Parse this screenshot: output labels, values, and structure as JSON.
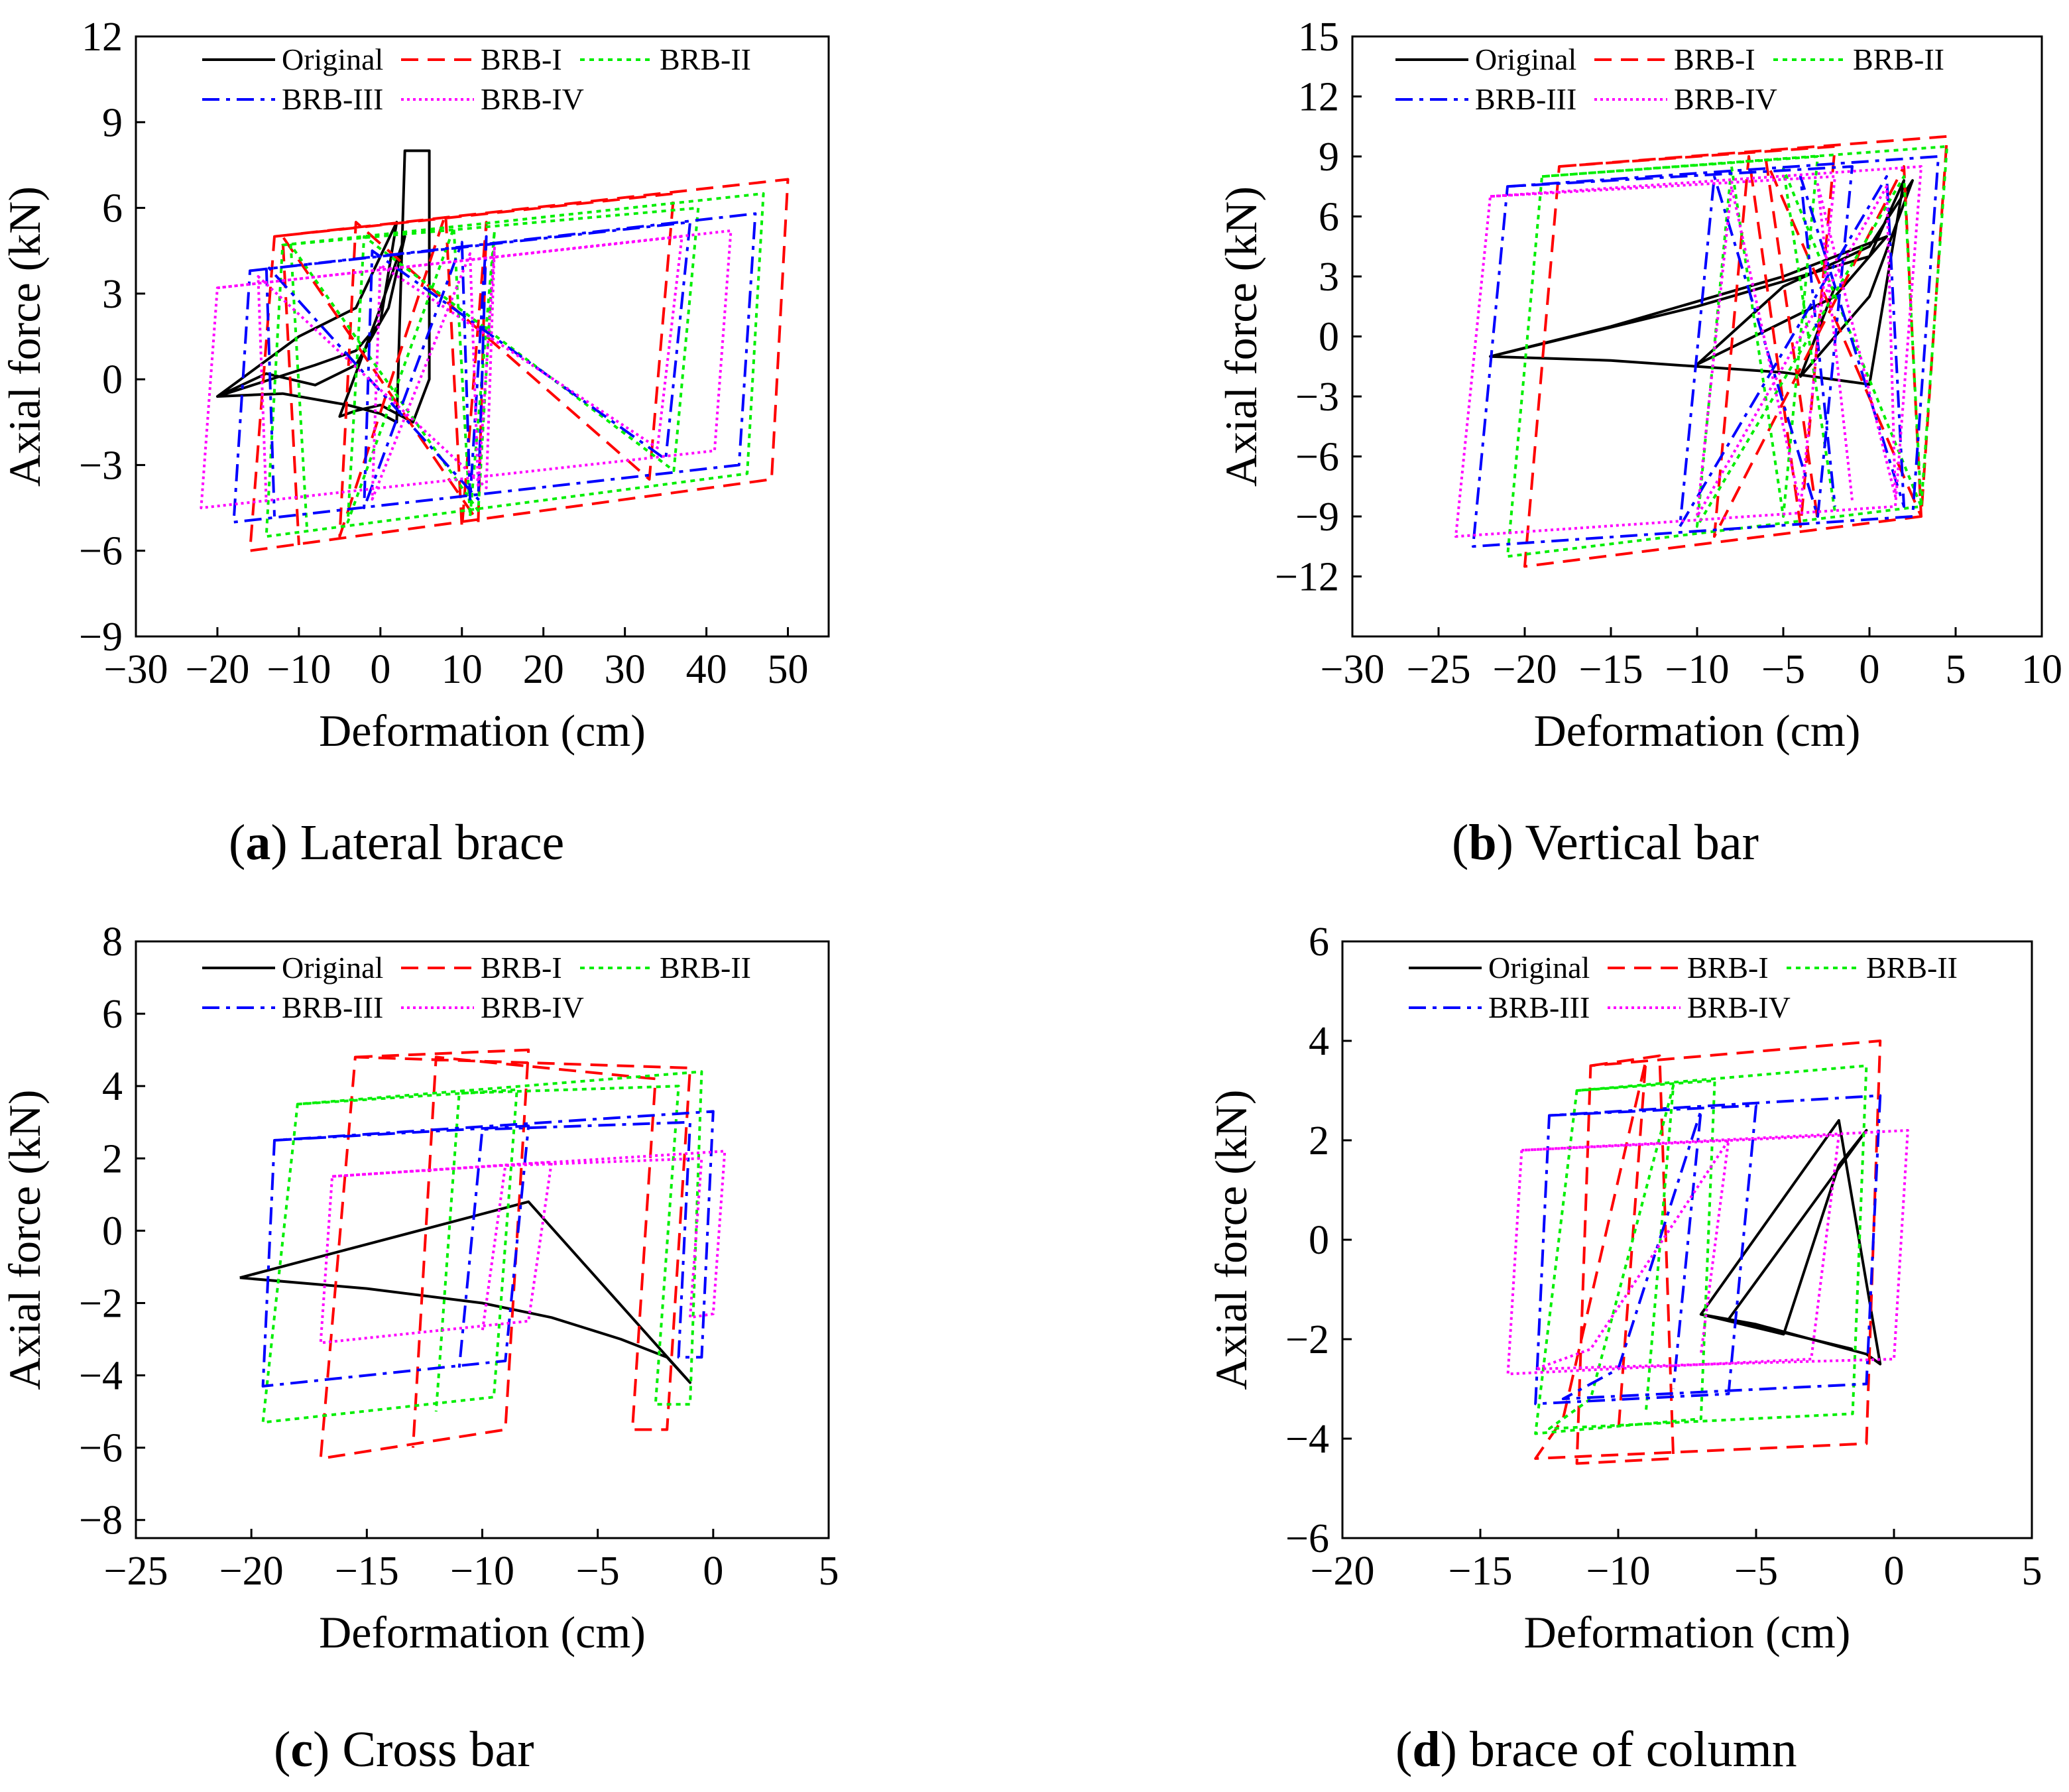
{
  "figure": {
    "colors": {
      "Original": "#000000",
      "BRB-I": "#ff0000",
      "BRB-II": "#00ee00",
      "BRB-III": "#0000ff",
      "BRB-IV": "#ff00ff"
    },
    "dash_styles": {
      "Original": "solid",
      "BRB-I": "dashed",
      "BRB-II": "dotted",
      "BRB-III": "dash-dot",
      "BRB-IV": "fine-dotted"
    }
  },
  "chart_data": [
    {
      "id": "a",
      "type": "line",
      "caption_letter": "a",
      "caption_text": " Lateral brace",
      "xlabel": "Deformation (cm)",
      "ylabel": "Axial force (kN)",
      "xlim": [
        -30,
        55
      ],
      "ylim": [
        -9,
        12
      ],
      "xticks": [
        -30,
        -20,
        -10,
        0,
        10,
        20,
        30,
        40,
        50
      ],
      "yticks": [
        -9,
        -6,
        -3,
        0,
        3,
        6,
        9,
        12
      ],
      "xtick_labels": [
        "−30",
        "−20",
        "−10",
        "0",
        "10",
        "20",
        "30",
        "40",
        "50"
      ],
      "ytick_labels": [
        "−9",
        "−6",
        "−3",
        "0",
        "3",
        "6",
        "9",
        "12"
      ],
      "legend": [
        "Original",
        "BRB-I",
        "BRB-II",
        "BRB-III",
        "BRB-IV"
      ],
      "series": [
        {
          "name": "Original",
          "x": [
            -20,
            -12,
            -4,
            0,
            2,
            3,
            6,
            6,
            4,
            2,
            0,
            -3,
            -5,
            0,
            3,
            1,
            -3,
            -8,
            -14,
            -20,
            -10,
            -3,
            2,
            0,
            -3,
            -8,
            -20
          ],
          "y": [
            -0.6,
            -0.5,
            -0.9,
            -1.2,
            -1.5,
            8,
            8,
            0,
            -1.5,
            -1.2,
            -0.9,
            -1.1,
            -1.3,
            2.5,
            5,
            2.5,
            0.5,
            -0.2,
            0.2,
            -0.6,
            1.5,
            2.5,
            5.5,
            2,
            1,
            0.5,
            -0.6
          ]
        },
        {
          "name": "BRB-I",
          "x": [
            -13,
            50,
            48,
            -16,
            -13,
            36,
            33,
            -3,
            -5,
            8,
            10,
            13,
            12,
            -12,
            -10
          ],
          "y": [
            5,
            7,
            -3.5,
            -6,
            5,
            6.5,
            -3.5,
            5.5,
            -5.5,
            5.8,
            -5.2,
            5.5,
            -5,
            5,
            -5.8
          ]
        },
        {
          "name": "BRB-II",
          "x": [
            -12,
            47,
            45,
            -14,
            -12,
            39,
            36,
            -2,
            -4,
            9,
            11,
            14,
            12,
            -11,
            -9
          ],
          "y": [
            4.7,
            6.5,
            -3.3,
            -5.5,
            4.7,
            6,
            -3.2,
            5,
            -5,
            5.3,
            -4.8,
            5.2,
            -4.6,
            4.7,
            -5.3
          ]
        },
        {
          "name": "BRB-III",
          "x": [
            -16,
            46,
            44,
            -18,
            -16,
            38,
            35,
            -1,
            -2,
            10,
            11,
            13,
            12,
            -14,
            -13
          ],
          "y": [
            3.8,
            5.8,
            -3,
            -5,
            3.8,
            5.5,
            -2.8,
            4.5,
            -4.5,
            4.8,
            -4.2,
            5,
            -4.2,
            4,
            -4.8
          ]
        },
        {
          "name": "BRB-IV",
          "x": [
            -20,
            43,
            41,
            -22,
            -20,
            37,
            34,
            0,
            -1,
            11,
            12,
            14,
            13,
            -15,
            -14
          ],
          "y": [
            3.2,
            5.2,
            -2.5,
            -4.5,
            3.2,
            5,
            -2.4,
            4,
            -4.2,
            4.4,
            -3.8,
            4.6,
            -3.8,
            3.6,
            -4.3
          ]
        }
      ]
    },
    {
      "id": "b",
      "type": "line",
      "caption_letter": "b",
      "caption_text": " Vertical bar",
      "xlabel": "Deformation (cm)",
      "ylabel": "Axial force (kN)",
      "xlim": [
        -30,
        10
      ],
      "ylim": [
        -15,
        15
      ],
      "xticks": [
        -30,
        -25,
        -20,
        -15,
        -10,
        -5,
        0,
        5,
        10
      ],
      "yticks": [
        -12,
        -9,
        -6,
        -3,
        0,
        3,
        6,
        9,
        12,
        15
      ],
      "xtick_labels": [
        "−30",
        "−25",
        "−20",
        "−15",
        "−10",
        "−5",
        "0",
        "5",
        "10"
      ],
      "ytick_labels": [
        "−12",
        "−9",
        "−6",
        "−3",
        "0",
        "3",
        "6",
        "9",
        "12",
        "15"
      ],
      "legend": [
        "Original",
        "BRB-I",
        "BRB-II",
        "BRB-III",
        "BRB-IV"
      ],
      "series": [
        {
          "name": "Original",
          "x": [
            -22,
            -15,
            -10,
            -5,
            0,
            2,
            0,
            -10,
            -22,
            -15,
            -5,
            1,
            -2,
            -10,
            -5,
            0,
            2.5,
            0,
            -4,
            -2
          ],
          "y": [
            -1,
            -1.2,
            -1.5,
            -1.8,
            -2.4,
            7.8,
            4,
            1.5,
            -1,
            0.5,
            3,
            5,
            2,
            -1.4,
            2.5,
            4.5,
            7.8,
            2,
            -2,
            2.5
          ]
        },
        {
          "name": "BRB-I",
          "x": [
            -18,
            4.5,
            3,
            -20,
            -18,
            -2,
            -4,
            -7,
            -9,
            2,
            3,
            -6,
            -3
          ],
          "y": [
            8.5,
            10,
            -9,
            -11.5,
            8.5,
            9.5,
            -9.5,
            9,
            -10,
            8.5,
            -9,
            8.8,
            -9.2
          ]
        },
        {
          "name": "BRB-II",
          "x": [
            -19,
            4.5,
            3,
            -21,
            -19,
            -3,
            -5,
            -8,
            -10,
            2,
            3,
            -5,
            -2
          ],
          "y": [
            8,
            9.5,
            -8.5,
            -11,
            8,
            9,
            -9,
            8.5,
            -9.5,
            8,
            -8.5,
            8.4,
            -8.8
          ]
        },
        {
          "name": "BRB-III",
          "x": [
            -21,
            4,
            2.5,
            -23,
            -21,
            -1,
            -3,
            -9,
            -11,
            1,
            2,
            -4,
            -2
          ],
          "y": [
            7.5,
            9,
            -9,
            -10.5,
            7.5,
            8.5,
            -9,
            8,
            -9.5,
            8,
            -8.5,
            8,
            -8.5
          ]
        },
        {
          "name": "BRB-IV",
          "x": [
            -22,
            3,
            1.5,
            -24,
            -22,
            -2,
            -4,
            -8,
            -10,
            1,
            1.5,
            -3,
            -1
          ],
          "y": [
            7,
            8.5,
            -8.5,
            -10,
            7,
            8,
            -8.5,
            7.5,
            -9,
            7.5,
            -8,
            7.6,
            -8.2
          ]
        }
      ]
    },
    {
      "id": "c",
      "type": "line",
      "caption_letter": "c",
      "caption_text": " Cross bar",
      "xlabel": "Deformation (cm)",
      "ylabel": "Axial force (kN)",
      "xlim": [
        -25,
        5
      ],
      "ylim": [
        -8.5,
        8
      ],
      "xticks": [
        -25,
        -20,
        -15,
        -10,
        -5,
        0,
        5
      ],
      "yticks": [
        -8,
        -6,
        -4,
        -2,
        0,
        2,
        4,
        6,
        8
      ],
      "xtick_labels": [
        "−25",
        "−20",
        "−15",
        "−10",
        "−5",
        "0",
        "5"
      ],
      "ytick_labels": [
        "−8",
        "−6",
        "−4",
        "−2",
        "0",
        "2",
        "4",
        "6",
        "8"
      ],
      "legend": [
        "Original",
        "BRB-I",
        "BRB-II",
        "BRB-III",
        "BRB-IV"
      ],
      "series": [
        {
          "name": "Original",
          "x": [
            -20.5,
            -15,
            -10,
            -7,
            -4,
            -2,
            -1,
            -8,
            -20.5
          ],
          "y": [
            -1.3,
            -1.6,
            -2,
            -2.4,
            -3,
            -3.5,
            -4.2,
            0.8,
            -1.3
          ]
        },
        {
          "name": "BRB-I",
          "x": [
            -15.5,
            -8,
            -9,
            -17,
            -15.5,
            -1,
            -2,
            -3.5,
            -2.5,
            -12,
            -13
          ],
          "y": [
            4.8,
            5,
            -5.5,
            -6.3,
            4.8,
            4.5,
            -5.5,
            -5.5,
            4.2,
            4.8,
            -6
          ]
        },
        {
          "name": "BRB-II",
          "x": [
            -18,
            -8.5,
            -9.5,
            -19.5,
            -18,
            -0.5,
            -1,
            -2.5,
            -1.5,
            -11,
            -12
          ],
          "y": [
            3.5,
            3.9,
            -4.6,
            -5.3,
            3.5,
            4.4,
            -4.8,
            -4.8,
            4,
            3.8,
            -5
          ]
        },
        {
          "name": "BRB-III",
          "x": [
            -19,
            -8,
            -9,
            -19.5,
            -19,
            0,
            -0.5,
            -1.5,
            -1,
            -10,
            -11
          ],
          "y": [
            2.5,
            2.9,
            -3.6,
            -4.3,
            2.5,
            3.3,
            -3.5,
            -3.5,
            3,
            2.8,
            -3.8
          ]
        },
        {
          "name": "BRB-IV",
          "x": [
            -16.5,
            -7,
            -8,
            -17,
            -16.5,
            0.5,
            0,
            -1,
            -0.5,
            -9,
            -10
          ],
          "y": [
            1.5,
            1.9,
            -2.5,
            -3.1,
            1.5,
            2.2,
            -2.3,
            -2.4,
            2,
            1.8,
            -2.8
          ]
        }
      ]
    },
    {
      "id": "d",
      "type": "line",
      "caption_letter": "d",
      "caption_text": " brace of column",
      "xlabel": "Deformation (cm)",
      "ylabel": "Axial force (kN)",
      "xlim": [
        -20,
        5
      ],
      "ylim": [
        -6,
        6
      ],
      "xticks": [
        -20,
        -15,
        -10,
        -5,
        0,
        5
      ],
      "yticks": [
        -6,
        -4,
        -2,
        0,
        2,
        4,
        6
      ],
      "xtick_labels": [
        "−20",
        "−15",
        "−10",
        "−5",
        "0",
        "5"
      ],
      "ytick_labels": [
        "−6",
        "−4",
        "−2",
        "0",
        "2",
        "4",
        "6"
      ],
      "legend": [
        "Original",
        "BRB-I",
        "BRB-II",
        "BRB-III",
        "BRB-IV"
      ],
      "series": [
        {
          "name": "Original",
          "x": [
            -7,
            -5,
            -3,
            -1,
            -0.5,
            -2,
            -7,
            -4,
            -2,
            -1,
            -6,
            -3,
            -1.5
          ],
          "y": [
            -1.5,
            -1.7,
            -2,
            -2.3,
            -2.5,
            2.4,
            -1.5,
            -1.9,
            1.5,
            2.2,
            -1.6,
            -2,
            -2.2
          ]
        },
        {
          "name": "BRB-I",
          "x": [
            -11,
            -8.5,
            -8,
            -11.5,
            -11,
            -0.5,
            -1,
            -13,
            -12,
            -9,
            -10
          ],
          "y": [
            3.5,
            3.7,
            -4.4,
            -4.5,
            3.5,
            4,
            -4.1,
            -4.4,
            -3.6,
            3.6,
            -3.9
          ]
        },
        {
          "name": "BRB-II",
          "x": [
            -11.5,
            -6.5,
            -7,
            -13,
            -11.5,
            -1,
            -1.5,
            -12.5,
            -11,
            -8,
            -9
          ],
          "y": [
            3,
            3.2,
            -3.6,
            -3.9,
            3,
            3.5,
            -3.5,
            -3.8,
            -3.2,
            3.1,
            -3.5
          ]
        },
        {
          "name": "BRB-III",
          "x": [
            -12.5,
            -5,
            -6,
            -13,
            -12.5,
            -0.5,
            -1,
            -12,
            -10,
            -7,
            -8
          ],
          "y": [
            2.5,
            2.7,
            -3.1,
            -3.3,
            2.5,
            2.9,
            -2.9,
            -3.2,
            -2.6,
            2.6,
            -3
          ]
        },
        {
          "name": "BRB-IV",
          "x": [
            -13.5,
            -2,
            -3,
            -14,
            -13.5,
            0.5,
            0,
            -13,
            -11,
            -6,
            -7
          ],
          "y": [
            1.8,
            2.1,
            -2.4,
            -2.7,
            1.8,
            2.2,
            -2.4,
            -2.6,
            -2.2,
            2,
            -2.3
          ]
        }
      ]
    }
  ]
}
